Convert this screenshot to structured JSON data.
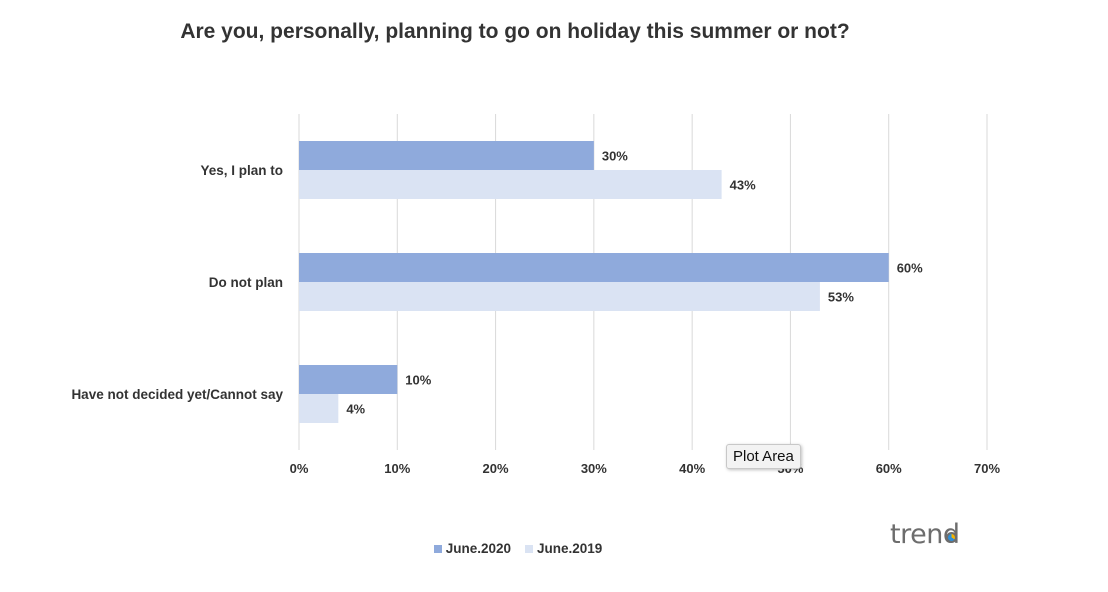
{
  "chart_data": {
    "type": "bar",
    "orientation": "horizontal",
    "title": "Are you, personally, planning to go on holiday this summer or not?",
    "categories": [
      "Yes, I plan to",
      "Do not plan",
      "Have not decided yet/Cannot say"
    ],
    "series": [
      {
        "name": "June.2020",
        "values": [
          30,
          60,
          10
        ],
        "color": "#8faadc"
      },
      {
        "name": "June.2019",
        "values": [
          43,
          53,
          4
        ],
        "color": "#dae3f3"
      }
    ],
    "value_suffix": "%",
    "xlim": [
      0,
      70
    ],
    "xticks": [
      0,
      10,
      20,
      30,
      40,
      50,
      60,
      70
    ],
    "xtick_labels": [
      "0%",
      "10%",
      "20%",
      "30%",
      "40%",
      "50%",
      "60%",
      "70%"
    ],
    "grid": true,
    "legend_position": "bottom"
  },
  "tooltip": "Plot Area",
  "logo": "trend"
}
